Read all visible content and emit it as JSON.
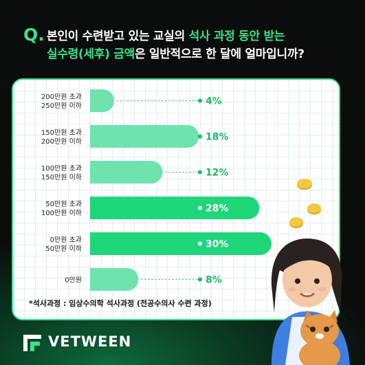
{
  "question": {
    "marker": "Q.",
    "line1_white": "본인이 수련받고 있는 교실의 ",
    "line1_green": "석사 과정 동안 받는",
    "line2_green": "실수령(세후) 금액",
    "line2_white": "은 일반적으로 한 달에 얼마입니까?"
  },
  "chart_data": {
    "type": "bar",
    "orientation": "horizontal",
    "categories": [
      [
        "200만원 초과",
        "250만원 이하"
      ],
      [
        "150만원 초과",
        "200만원 이하"
      ],
      [
        "100만원 초과",
        "150만원 이하"
      ],
      [
        "50만원 초과",
        "100만원 이하"
      ],
      [
        "0만원 초과",
        "50만원 이하"
      ],
      [
        "0만원"
      ]
    ],
    "values": [
      4,
      18,
      12,
      28,
      30,
      8
    ],
    "value_labels": [
      "4%",
      "18%",
      "12%",
      "28%",
      "30%",
      "8%"
    ],
    "unit": "%",
    "xlim": [
      0,
      30
    ],
    "highlighted": [
      3,
      4
    ],
    "colors": {
      "normal": "#6fe3ad",
      "highlight": "#1fd67a",
      "label": "#1fb86a"
    }
  },
  "footnote": "*석사과정 : 임상수의학 석사과정 (전공수의사 수련 과정)",
  "brand": {
    "name": "VETWEEN",
    "accent": "#3be08a"
  }
}
